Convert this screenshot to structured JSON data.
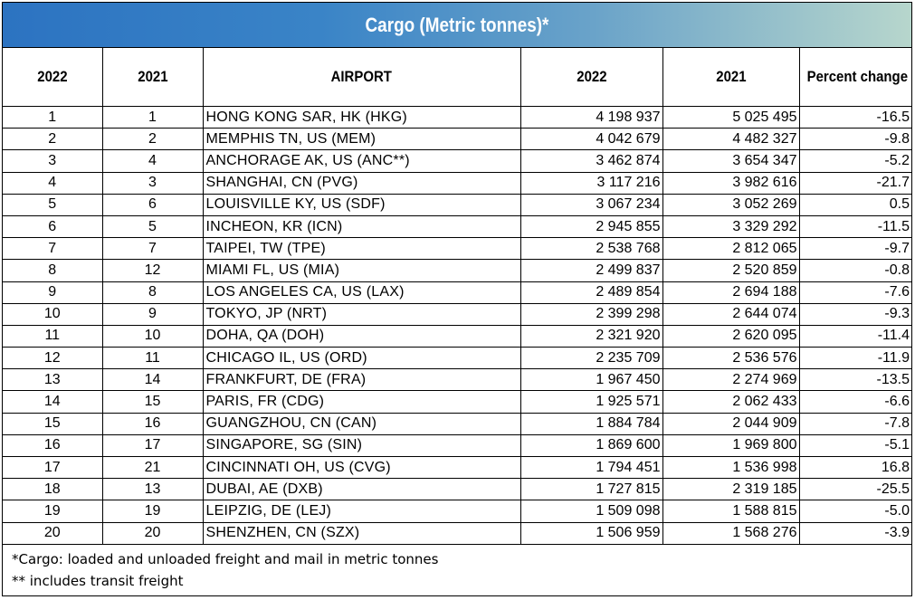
{
  "title": "Cargo (Metric tonnes)*",
  "headers": [
    "2022",
    "2021",
    "AIRPORT",
    "2022",
    "2021",
    "Percent change"
  ],
  "rows": [
    {
      "rank_2022": "1",
      "rank_2021": "1",
      "airport": "HONG KONG SAR, HK (HKG)",
      "cargo_2022": "4 198 937",
      "cargo_2021": "5 025 495",
      "pct_change": "-16.5"
    },
    {
      "rank_2022": "2",
      "rank_2021": "2",
      "airport": "MEMPHIS TN, US (MEM)",
      "cargo_2022": "4 042 679",
      "cargo_2021": "4 482 327",
      "pct_change": "-9.8"
    },
    {
      "rank_2022": "3",
      "rank_2021": "4",
      "airport": "ANCHORAGE AK, US (ANC**)",
      "cargo_2022": "3 462 874",
      "cargo_2021": "3 654 347",
      "pct_change": "-5.2"
    },
    {
      "rank_2022": "4",
      "rank_2021": "3",
      "airport": "SHANGHAI, CN (PVG)",
      "cargo_2022": "3 117 216",
      "cargo_2021": "3 982 616",
      "pct_change": "-21.7"
    },
    {
      "rank_2022": "5",
      "rank_2021": "6",
      "airport": "LOUISVILLE KY, US (SDF)",
      "cargo_2022": "3 067 234",
      "cargo_2021": "3 052 269",
      "pct_change": "0.5"
    },
    {
      "rank_2022": "6",
      "rank_2021": "5",
      "airport": "INCHEON, KR (ICN)",
      "cargo_2022": "2 945 855",
      "cargo_2021": "3 329 292",
      "pct_change": "-11.5"
    },
    {
      "rank_2022": "7",
      "rank_2021": "7",
      "airport": "TAIPEI, TW (TPE)",
      "cargo_2022": "2 538 768",
      "cargo_2021": "2 812 065",
      "pct_change": "-9.7"
    },
    {
      "rank_2022": "8",
      "rank_2021": "12",
      "airport": "MIAMI FL, US (MIA)",
      "cargo_2022": "2 499 837",
      "cargo_2021": "2 520 859",
      "pct_change": "-0.8"
    },
    {
      "rank_2022": "9",
      "rank_2021": "8",
      "airport": "LOS ANGELES CA, US (LAX)",
      "cargo_2022": "2 489 854",
      "cargo_2021": "2 694 188",
      "pct_change": "-7.6"
    },
    {
      "rank_2022": "10",
      "rank_2021": "9",
      "airport": "TOKYO, JP (NRT)",
      "cargo_2022": "2 399 298",
      "cargo_2021": "2 644 074",
      "pct_change": "-9.3"
    },
    {
      "rank_2022": "11",
      "rank_2021": "10",
      "airport": "DOHA, QA (DOH)",
      "cargo_2022": "2 321 920",
      "cargo_2021": "2 620 095",
      "pct_change": "-11.4"
    },
    {
      "rank_2022": "12",
      "rank_2021": "11",
      "airport": "CHICAGO IL, US (ORD)",
      "cargo_2022": "2 235 709",
      "cargo_2021": "2 536 576",
      "pct_change": "-11.9"
    },
    {
      "rank_2022": "13",
      "rank_2021": "14",
      "airport": "FRANKFURT, DE (FRA)",
      "cargo_2022": "1 967 450",
      "cargo_2021": "2 274 969",
      "pct_change": "-13.5"
    },
    {
      "rank_2022": "14",
      "rank_2021": "15",
      "airport": "PARIS, FR (CDG)",
      "cargo_2022": "1 925 571",
      "cargo_2021": "2 062 433",
      "pct_change": "-6.6"
    },
    {
      "rank_2022": "15",
      "rank_2021": "16",
      "airport": "GUANGZHOU, CN (CAN)",
      "cargo_2022": "1 884 784",
      "cargo_2021": "2 044 909",
      "pct_change": "-7.8"
    },
    {
      "rank_2022": "16",
      "rank_2021": "17",
      "airport": "SINGAPORE, SG (SIN)",
      "cargo_2022": "1 869 600",
      "cargo_2021": "1 969 800",
      "pct_change": "-5.1"
    },
    {
      "rank_2022": "17",
      "rank_2021": "21",
      "airport": "CINCINNATI OH, US (CVG)",
      "cargo_2022": "1 794 451",
      "cargo_2021": "1 536 998",
      "pct_change": "16.8"
    },
    {
      "rank_2022": "18",
      "rank_2021": "13",
      "airport": "DUBAI, AE (DXB)",
      "cargo_2022": "1 727 815",
      "cargo_2021": "2 319 185",
      "pct_change": "-25.5"
    },
    {
      "rank_2022": "19",
      "rank_2021": "19",
      "airport": "LEIPZIG, DE (LEJ)",
      "cargo_2022": "1 509 098",
      "cargo_2021": "1 588 815",
      "pct_change": "-5.0"
    },
    {
      "rank_2022": "20",
      "rank_2021": "20",
      "airport": "SHENZHEN, CN (SZX)",
      "cargo_2022": "1 506 959",
      "cargo_2021": "1 568 276",
      "pct_change": "-3.9"
    }
  ],
  "notes": [
    "*Cargo: loaded and unloaded freight and mail in metric tonnes",
    "** includes transit freight"
  ],
  "colors": {
    "banner_start": "#2c73c1",
    "banner_end": "#b7d6cc",
    "banner_text": "#ffffff",
    "border": "#000000"
  }
}
